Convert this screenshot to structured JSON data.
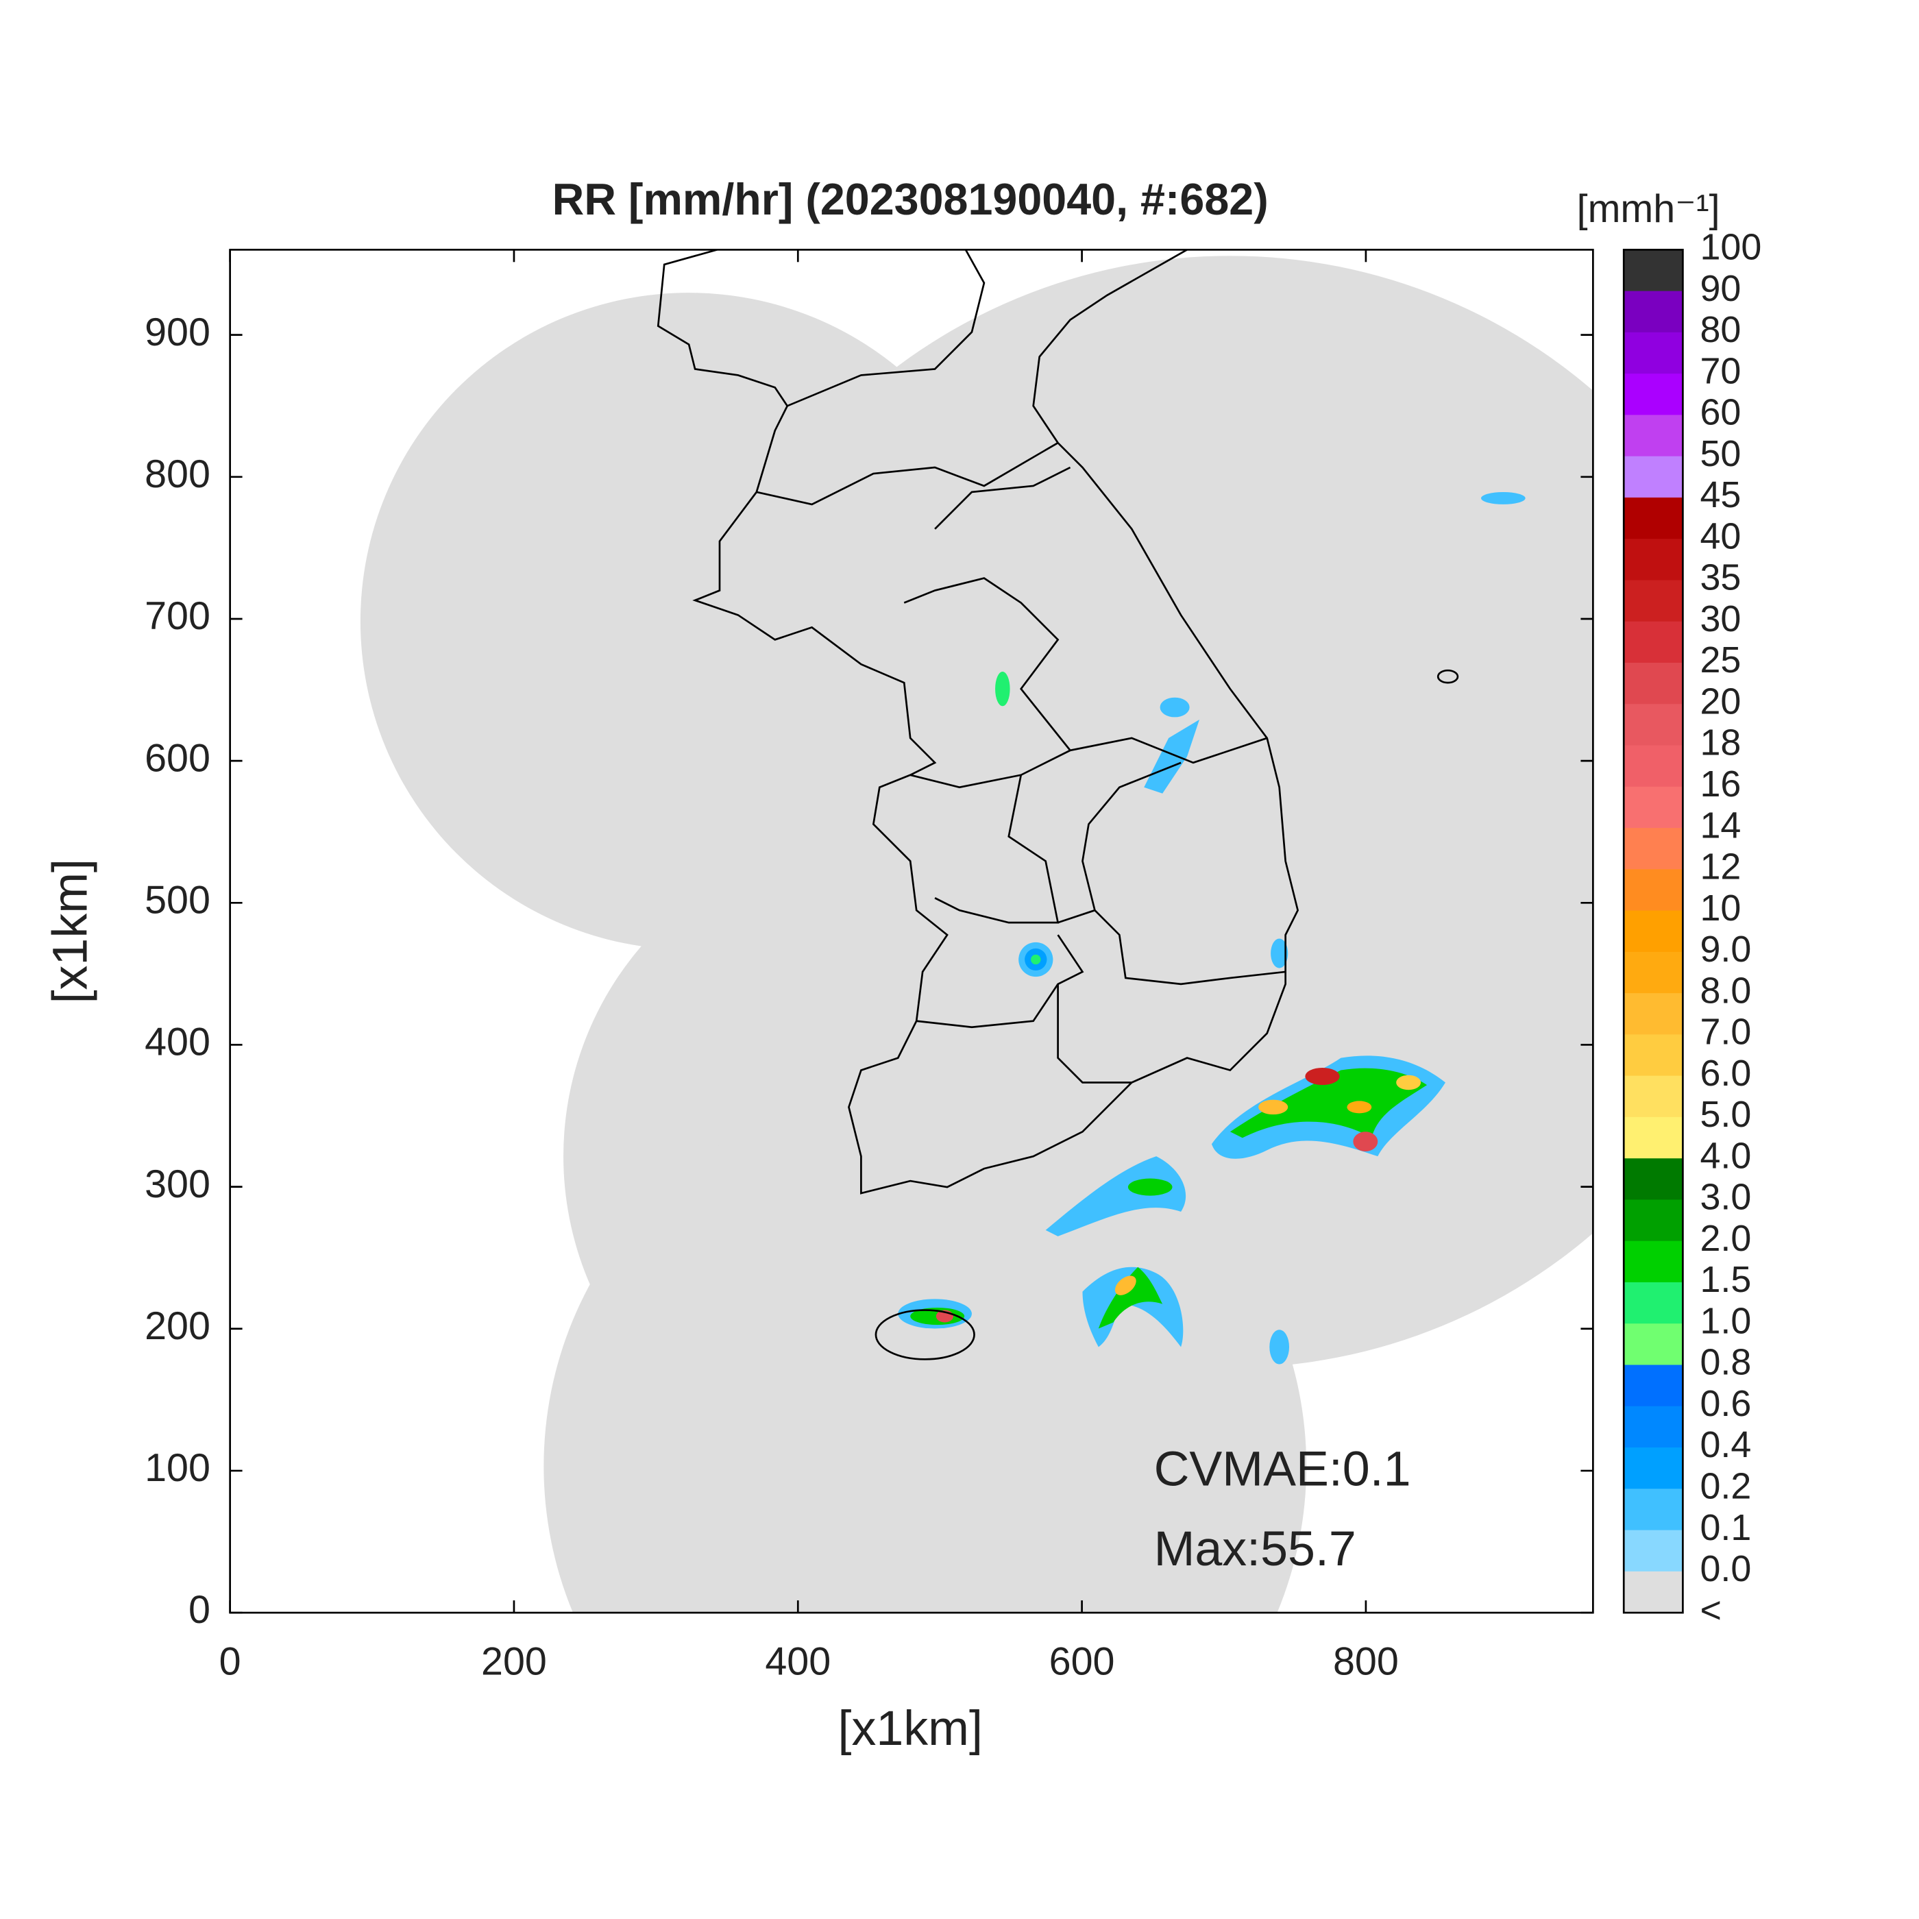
{
  "chart_data": {
    "type": "map",
    "title": "RR [mm/hr] (202308190040, #:682)",
    "xlabel": "[x1km]",
    "ylabel": "[x1km]",
    "xlim": [
      0,
      960
    ],
    "ylim": [
      0,
      960
    ],
    "xticks": [
      0,
      200,
      400,
      600,
      800
    ],
    "yticks": [
      0,
      100,
      200,
      300,
      400,
      500,
      600,
      700,
      800,
      900
    ],
    "annotations": [
      "CVMAE:0.1",
      "Max:55.7"
    ],
    "colorbar": {
      "title": "[mmh⁻¹]",
      "labels": [
        "100",
        "90",
        "80",
        "70",
        "60",
        "50",
        "45",
        "40",
        "35",
        "30",
        "25",
        "20",
        "18",
        "16",
        "14",
        "12",
        "10",
        "9.0",
        "8.0",
        "7.0",
        "6.0",
        "5.0",
        "4.0",
        "3.0",
        "2.0",
        "1.5",
        "1.0",
        "0.8",
        "0.6",
        "0.4",
        "0.2",
        "0.1",
        "0.0",
        "<"
      ],
      "colors": [
        "#333333",
        "#7a00c0",
        "#9000e0",
        "#aa00ff",
        "#c040f0",
        "#c080ff",
        "#b00000",
        "#c01010",
        "#cc2020",
        "#d83038",
        "#e04850",
        "#e85860",
        "#f06068",
        "#f87070",
        "#ff8050",
        "#ff8c20",
        "#ffa000",
        "#ffaa10",
        "#ffbb30",
        "#ffcc40",
        "#ffe060",
        "#fff070",
        "#007a00",
        "#00a000",
        "#00d000",
        "#20f070",
        "#70ff70",
        "#0070ff",
        "#0088ff",
        "#00a0ff",
        "#40c0ff",
        "#88d8ff",
        "#dedede",
        "#ffffff"
      ]
    }
  }
}
